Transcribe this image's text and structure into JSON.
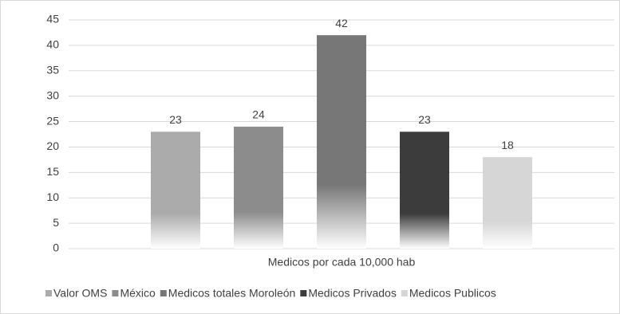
{
  "chart_data": {
    "type": "bar",
    "categories": [
      "Medicos por cada 10,000 hab"
    ],
    "series": [
      {
        "name": "Valor OMS",
        "color": "#ababab",
        "values": [
          23
        ]
      },
      {
        "name": "México",
        "color": "#8c8c8c",
        "values": [
          24
        ]
      },
      {
        "name": "Medicos totales Moroleón",
        "color": "#777777",
        "values": [
          42
        ]
      },
      {
        "name": "Medicos Privados",
        "color": "#3c3c3c",
        "values": [
          23
        ]
      },
      {
        "name": "Medicos Publicos",
        "color": "#d6d6d6",
        "values": [
          18
        ]
      }
    ],
    "ylim": [
      0,
      45
    ],
    "yticks": [
      0,
      5,
      10,
      15,
      20,
      25,
      30,
      35,
      40,
      45
    ],
    "grid": true,
    "legend": "bottom"
  }
}
